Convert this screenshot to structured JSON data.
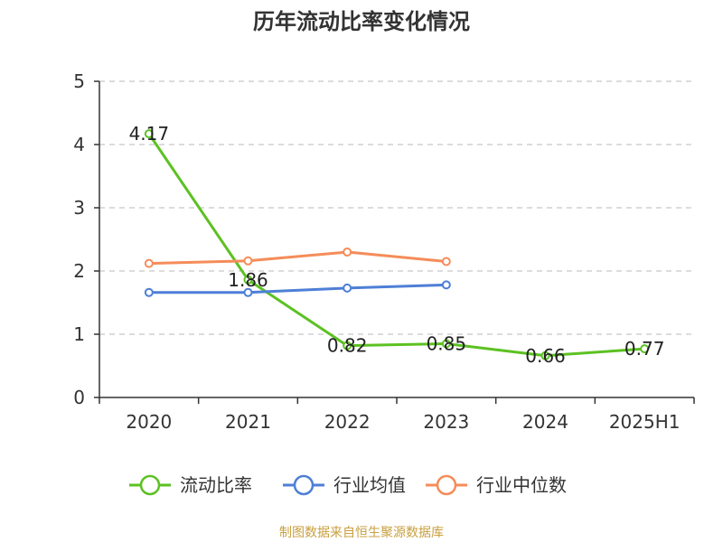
{
  "chart_data": {
    "type": "line",
    "title": "历年流动比率变化情况",
    "categories": [
      "2020",
      "2021",
      "2022",
      "2023",
      "2024",
      "2025H1"
    ],
    "ylim": [
      0,
      5
    ],
    "yticks": [
      "0",
      "1",
      "2",
      "3",
      "4",
      "5"
    ],
    "grid": true,
    "legend_position": "bottom",
    "series": [
      {
        "name": "流动比率",
        "color": "#5cc122",
        "values": [
          4.17,
          1.86,
          0.82,
          0.85,
          0.66,
          0.77
        ],
        "labels": [
          "4.17",
          "1.86",
          "0.82",
          "0.85",
          "0.66",
          "0.77"
        ]
      },
      {
        "name": "行业均值",
        "color": "#4e7fd6",
        "values": [
          1.66,
          1.66,
          1.73,
          1.78,
          null,
          null
        ],
        "labels": []
      },
      {
        "name": "行业中位数",
        "color": "#f58c59",
        "values": [
          2.12,
          2.16,
          2.3,
          2.15,
          null,
          null
        ],
        "labels": []
      }
    ]
  },
  "footer": "制图数据来自恒生聚源数据库"
}
